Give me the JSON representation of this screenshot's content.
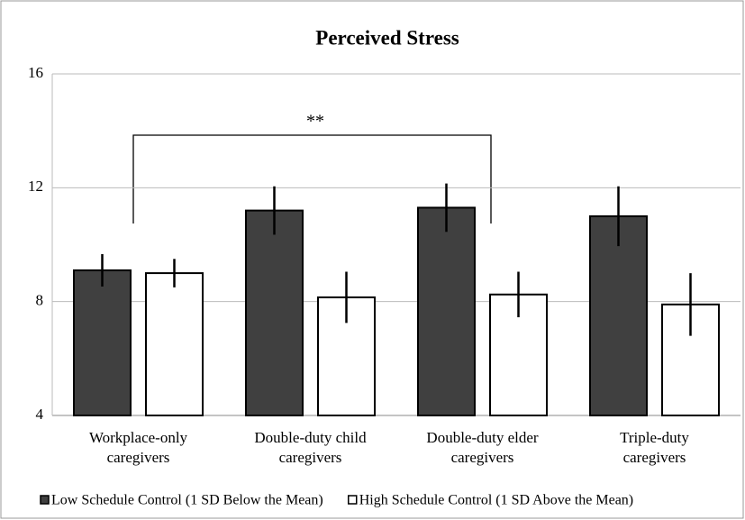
{
  "chart_data": {
    "type": "bar",
    "title": "Perceived Stress",
    "categories": [
      [
        "Workplace-only",
        "caregivers"
      ],
      [
        "Double-duty child",
        "caregivers"
      ],
      [
        "Double-duty elder",
        "caregivers"
      ],
      [
        "Triple-duty",
        "caregivers"
      ]
    ],
    "series": [
      {
        "name": "Low Schedule Control (1 SD Below the Mean)",
        "color": "#404040",
        "values": [
          9.1,
          11.2,
          11.3,
          11.0
        ],
        "errors": [
          0.57,
          0.85,
          0.85,
          1.05
        ]
      },
      {
        "name": "High Schedule Control (1 SD Above the Mean)",
        "color": "#ffffff",
        "values": [
          9.0,
          8.15,
          8.25,
          7.9
        ],
        "errors": [
          0.5,
          0.9,
          0.8,
          1.1
        ]
      }
    ],
    "ylim": [
      4,
      16
    ],
    "yticks": [
      4,
      8,
      12,
      16
    ],
    "grid": true,
    "legend": "bottom",
    "annotation": "**"
  }
}
